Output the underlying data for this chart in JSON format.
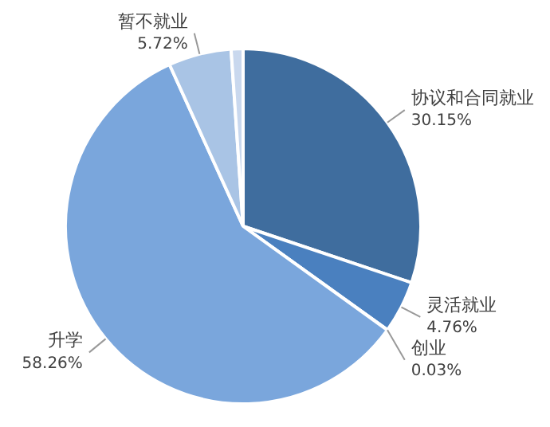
{
  "chart_data": {
    "type": "pie",
    "categories": [
      "协议和合同就业",
      "灵活就业",
      "创业",
      "升学",
      "暂不就业",
      null
    ],
    "values": [
      30.15,
      4.76,
      0.03,
      58.26,
      5.72,
      1.08
    ],
    "value_labels": [
      "30.15%",
      "4.76%",
      "0.03%",
      "58.26%",
      "5.72%",
      null
    ],
    "colors": [
      "#3f6d9e",
      "#4a80bf",
      "#5b8fcf",
      "#7aa6dc",
      "#a9c4e5",
      "#c9d8ee"
    ],
    "legend": false
  }
}
